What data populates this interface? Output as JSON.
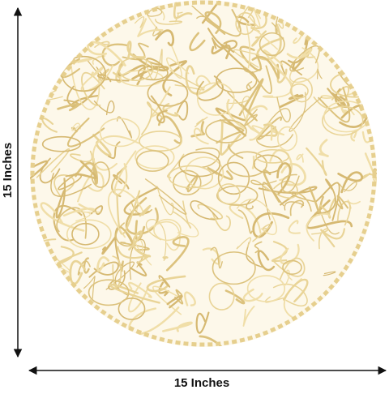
{
  "labels": {
    "height": "15 Inches",
    "width": "15 Inches"
  }
}
